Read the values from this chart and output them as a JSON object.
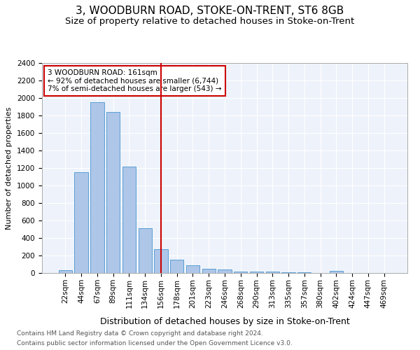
{
  "title": "3, WOODBURN ROAD, STOKE-ON-TRENT, ST6 8GB",
  "subtitle": "Size of property relative to detached houses in Stoke-on-Trent",
  "xlabel": "Distribution of detached houses by size in Stoke-on-Trent",
  "ylabel": "Number of detached properties",
  "footnote1": "Contains HM Land Registry data © Crown copyright and database right 2024.",
  "footnote2": "Contains public sector information licensed under the Open Government Licence v3.0.",
  "bar_labels": [
    "22sqm",
    "44sqm",
    "67sqm",
    "89sqm",
    "111sqm",
    "134sqm",
    "156sqm",
    "178sqm",
    "201sqm",
    "223sqm",
    "246sqm",
    "268sqm",
    "290sqm",
    "313sqm",
    "335sqm",
    "357sqm",
    "380sqm",
    "402sqm",
    "424sqm",
    "447sqm",
    "469sqm"
  ],
  "bar_values": [
    30,
    1150,
    1950,
    1840,
    1220,
    515,
    270,
    155,
    85,
    45,
    40,
    18,
    20,
    18,
    5,
    8,
    0,
    22,
    0,
    0,
    0
  ],
  "bar_color": "#aec6e8",
  "bar_edge_color": "#5a9fd4",
  "vline_x": 6,
  "vline_color": "#cc0000",
  "annotation_line1": "3 WOODBURN ROAD: 161sqm",
  "annotation_line2": "← 92% of detached houses are smaller (6,744)",
  "annotation_line3": "7% of semi-detached houses are larger (543) →",
  "annotation_box_color": "#ffffff",
  "annotation_box_edge": "#cc0000",
  "ylim": [
    0,
    2400
  ],
  "yticks": [
    0,
    200,
    400,
    600,
    800,
    1000,
    1200,
    1400,
    1600,
    1800,
    2000,
    2200,
    2400
  ],
  "plot_bg": "#eef3fb",
  "title_fontsize": 11,
  "subtitle_fontsize": 9.5,
  "xlabel_fontsize": 9,
  "ylabel_fontsize": 8,
  "tick_fontsize": 7.5,
  "annot_fontsize": 7.5,
  "footnote_fontsize": 6.5
}
